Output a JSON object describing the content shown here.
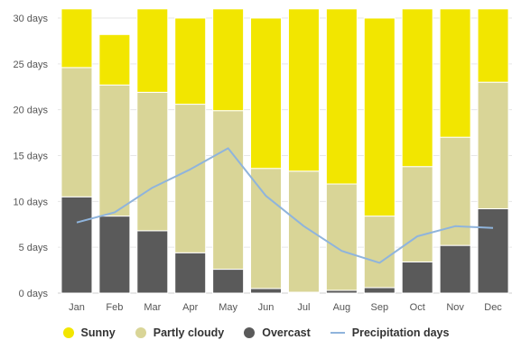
{
  "chart_data": {
    "type": "bar",
    "stacked": true,
    "categories": [
      "Jan",
      "Feb",
      "Mar",
      "Apr",
      "May",
      "Jun",
      "Jul",
      "Aug",
      "Sep",
      "Oct",
      "Nov",
      "Dec"
    ],
    "y_ticks": [
      "0 days",
      "5 days",
      "10 days",
      "15 days",
      "20 days",
      "25 days",
      "30 days"
    ],
    "ylim": [
      0,
      30
    ],
    "grid": true,
    "legend_position": "bottom",
    "series": [
      {
        "name": "Overcast",
        "kind": "bar",
        "color": "#5a5a5a",
        "values": [
          10.5,
          8.4,
          6.8,
          4.4,
          2.6,
          0.5,
          0.1,
          0.3,
          0.6,
          3.4,
          5.2,
          9.2
        ]
      },
      {
        "name": "Partly cloudy",
        "kind": "bar",
        "color": "#d9d597",
        "values": [
          14.1,
          14.3,
          15.1,
          16.2,
          17.3,
          13.1,
          13.2,
          11.6,
          7.8,
          10.4,
          11.8,
          13.8
        ]
      },
      {
        "name": "Sunny",
        "kind": "bar",
        "color": "#f2e600",
        "values": [
          6.4,
          5.5,
          9.1,
          9.4,
          11.1,
          16.4,
          17.7,
          19.1,
          21.6,
          17.2,
          14.0,
          8.0
        ]
      },
      {
        "name": "Precipitation days",
        "kind": "line",
        "color": "#8fb4dc",
        "values": [
          7.7,
          8.8,
          11.5,
          13.5,
          15.8,
          10.6,
          7.3,
          4.6,
          3.3,
          6.2,
          7.3,
          7.1
        ]
      }
    ]
  },
  "legend": [
    {
      "label": "Sunny",
      "color": "#f2e600",
      "symbol": "dot"
    },
    {
      "label": "Partly cloudy",
      "color": "#d9d597",
      "symbol": "dot"
    },
    {
      "label": "Overcast",
      "color": "#5a5a5a",
      "symbol": "dot"
    },
    {
      "label": "Precipitation days",
      "color": "#8fb4dc",
      "symbol": "line"
    }
  ]
}
